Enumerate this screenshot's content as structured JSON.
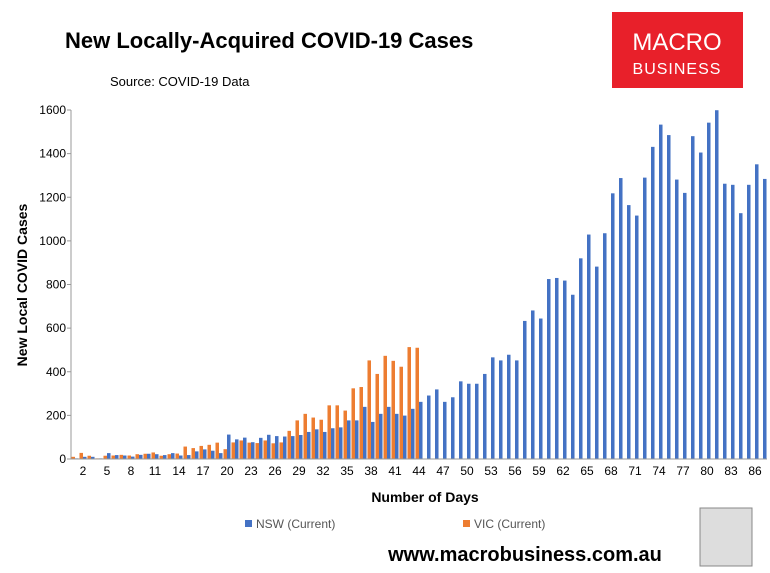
{
  "chart_data": {
    "type": "bar",
    "title": "New Locally-Acquired COVID-19 Cases",
    "subtitle": "Source: COVID-19 Data",
    "logo": [
      "MACRO",
      "BUSINESS"
    ],
    "footer": "www.macrobusiness.com.au",
    "xlabel": "Number of Days",
    "ylabel": "New Local COVID Cases",
    "categories": [
      null,
      2,
      null,
      null,
      5,
      null,
      null,
      8,
      null,
      null,
      11,
      null,
      null,
      14,
      null,
      null,
      17,
      null,
      null,
      20,
      null,
      null,
      23,
      null,
      null,
      26,
      null,
      null,
      29,
      null,
      null,
      32,
      null,
      null,
      35,
      null,
      null,
      38,
      null,
      null,
      41,
      null,
      null,
      44,
      null,
      null,
      47,
      null,
      null,
      50,
      null,
      null,
      53,
      null,
      null,
      56,
      null,
      null,
      59,
      null,
      null,
      62,
      null,
      null,
      65,
      null,
      null,
      68,
      null,
      null,
      71,
      null,
      null,
      74,
      null,
      null,
      77,
      null,
      null,
      80,
      null,
      null,
      83,
      null,
      null,
      86,
      null
    ],
    "series": [
      {
        "name": "NSW (Current)",
        "color": "#4472c4",
        "values": [
          3,
          10,
          10,
          3,
          27,
          18,
          16,
          11,
          19,
          24,
          22,
          18,
          27,
          16,
          18,
          35,
          44,
          38,
          27,
          112,
          90,
          98,
          77,
          97,
          111,
          105,
          103,
          105,
          110,
          124,
          136,
          124,
          141,
          145,
          177,
          177,
          239,
          170,
          207,
          239,
          207,
          199,
          230,
          262,
          291,
          319,
          262,
          283,
          356,
          345,
          345,
          390,
          466,
          452,
          478,
          452,
          633,
          681,
          644,
          825,
          830,
          818,
          753,
          920,
          1029,
          882,
          1035,
          1218,
          1288,
          1164,
          1116,
          1290,
          1431,
          1533,
          1485,
          1281,
          1220,
          1480,
          1405,
          1542,
          1599,
          1262,
          1257,
          1127,
          1257,
          1351,
          1284
        ]
      },
      {
        "name": "VIC (Current)",
        "color": "#ed7d31",
        "values": [
          10,
          28,
          15,
          3,
          15,
          16,
          19,
          16,
          22,
          24,
          30,
          15,
          22,
          25,
          57,
          50,
          60,
          65,
          75,
          45,
          76,
          85,
          75,
          73,
          85,
          72,
          76,
          129,
          177,
          207,
          190,
          180,
          246,
          246,
          222,
          324,
          330,
          452,
          390,
          473,
          450,
          423,
          513,
          510,
          null,
          null,
          null,
          null,
          null,
          null,
          null,
          null,
          null,
          null,
          null,
          null,
          null,
          null,
          null,
          null,
          null,
          null,
          null,
          null,
          null,
          null,
          null,
          null,
          null,
          null,
          null,
          null,
          null,
          null,
          null,
          null,
          null,
          null,
          null,
          null,
          null,
          null,
          null,
          null,
          null,
          null,
          null
        ]
      }
    ],
    "ylim": [
      0,
      1600
    ],
    "yticks": [
      0,
      200,
      400,
      600,
      800,
      1000,
      1200,
      1400,
      1600
    ]
  }
}
